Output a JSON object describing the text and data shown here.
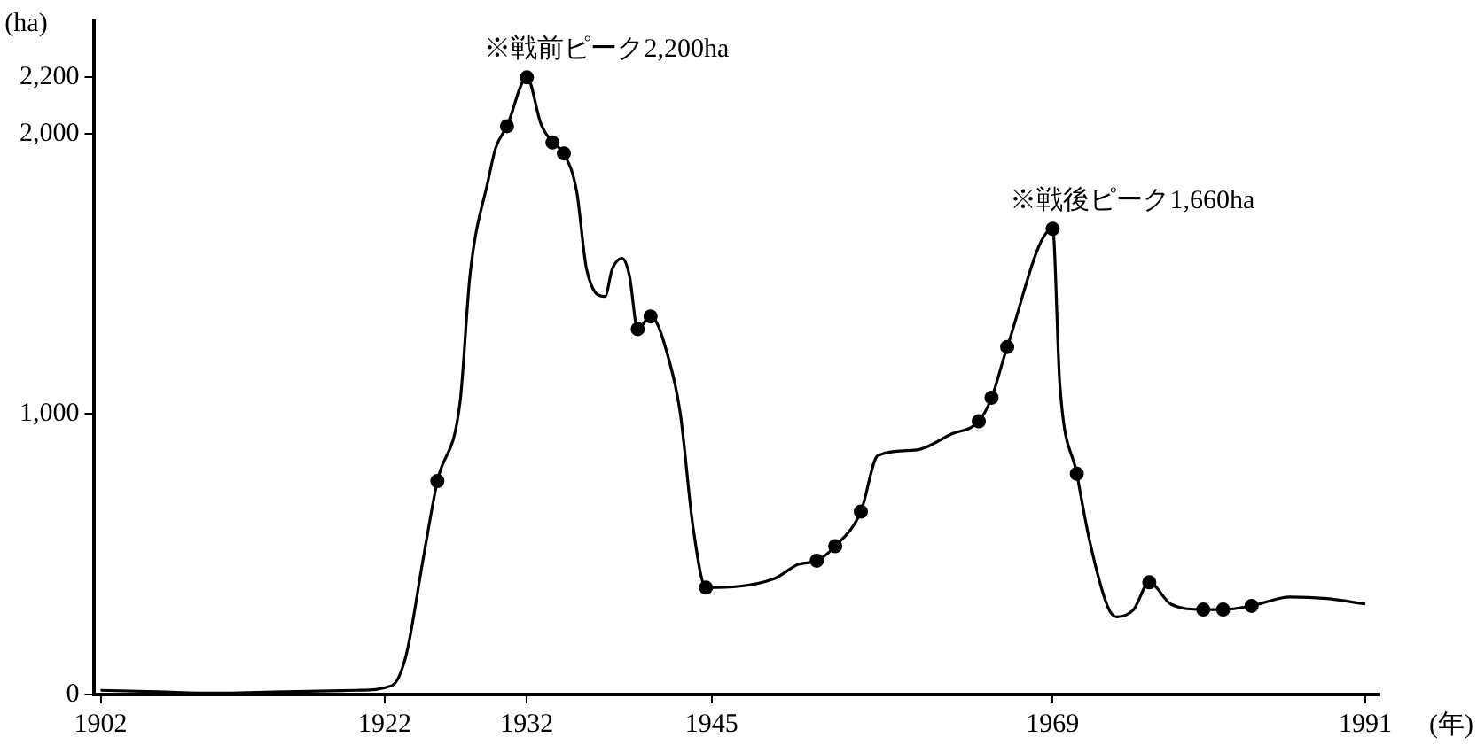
{
  "chart_data": {
    "type": "line",
    "xlabel": "(年)",
    "ylabel": "(ha)",
    "xlim": [
      1901.5,
      1992
    ],
    "xticks": [
      1902,
      1922,
      1932,
      1945,
      1969,
      1991
    ],
    "ylim": [
      0,
      2400
    ],
    "yticks": [
      0,
      {
        "value": 1000,
        "label": "1,000"
      },
      {
        "value": 2000,
        "label": "2,000"
      },
      {
        "value": 2200,
        "label": "2,200"
      }
    ],
    "grid": false,
    "legend": false,
    "annotations": [
      {
        "text": "※戦前ピーク2,200ha",
        "x": 1932,
        "y": 2200
      },
      {
        "text": "※戦後ピーク1,660ha",
        "x": 1969,
        "y": 1660
      }
    ],
    "series": [
      {
        "type": "line",
        "marker": "none",
        "color": "#000000",
        "x": [
          1902,
          1906,
          1910,
          1915,
          1920,
          1922.5,
          1923.5,
          1924.7,
          1925.7,
          1927.3,
          1928,
          1929.3,
          1929.8,
          1930.6,
          1932,
          1933,
          1933.8,
          1934.6,
          1935.5,
          1936.2,
          1937.5,
          1938,
          1938.7,
          1939.2,
          1939.8,
          1940.7,
          1942.1,
          1942.8,
          1943.7,
          1944.6,
          1949.4,
          1951.1,
          1952.4,
          1953.7,
          1955.5,
          1956.7,
          1959.3,
          1961.9,
          1963.8,
          1964.7,
          1965.8,
          1969,
          1969.5,
          1970.7,
          1971.6,
          1972.9,
          1973.5,
          1974.7,
          1975.8,
          1977.3,
          1979.6,
          1981,
          1983,
          1985.7,
          1988.3,
          1991
        ],
        "values": [
          15,
          10,
          5,
          10,
          15,
          32,
          140,
          484,
          761,
          1045,
          1497,
          1839,
          1948,
          2026,
          2200,
          2032,
          1968,
          1929,
          1794,
          1516,
          1419,
          1516,
          1555,
          1497,
          1303,
          1348,
          1174,
          1000,
          594,
          381,
          413,
          464,
          477,
          529,
          652,
          852,
          871,
          929,
          974,
          1058,
          1239,
          1660,
          1110,
          787,
          548,
          310,
          277,
          303,
          400,
          323,
          303,
          303,
          316,
          348,
          342,
          323
        ]
      },
      {
        "type": "scatter",
        "marker": "circle",
        "color": "#000000",
        "x": [
          1925.7,
          1930.6,
          1932,
          1933.8,
          1934.6,
          1939.8,
          1940.7,
          1944.6,
          1952.4,
          1953.7,
          1955.5,
          1963.8,
          1964.7,
          1965.8,
          1969,
          1970.7,
          1975.8,
          1979.6,
          1981,
          1983
        ],
        "values": [
          761,
          2026,
          2200,
          1968,
          1929,
          1303,
          1348,
          381,
          477,
          529,
          652,
          974,
          1058,
          1239,
          1660,
          787,
          400,
          303,
          303,
          316
        ]
      }
    ]
  }
}
